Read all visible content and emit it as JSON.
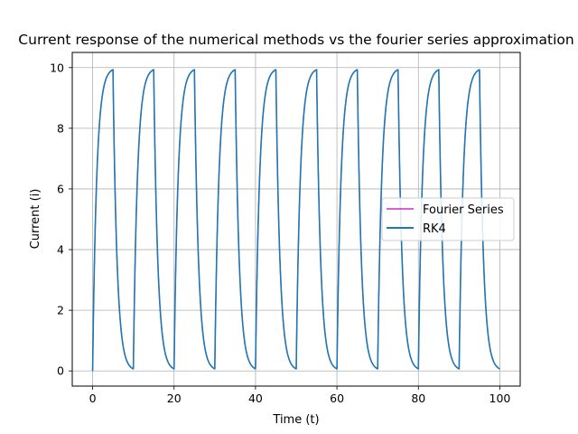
{
  "chart_data": {
    "type": "line",
    "title": "Current response of the numerical methods vs the fourier series approximation",
    "xlabel": "Time (t)",
    "ylabel": "Current (i)",
    "xlim": [
      -5,
      105
    ],
    "ylim": [
      -0.5,
      10.5
    ],
    "xticks": [
      0,
      20,
      40,
      60,
      80,
      100
    ],
    "yticks": [
      0,
      2,
      4,
      6,
      8,
      10
    ],
    "grid": true,
    "legend_position": "center-right",
    "series": [
      {
        "name": "Fourier Series",
        "color": "#bf00bf",
        "description_of_shape": "square-wave RL response overlapped by RK4"
      },
      {
        "name": "RK4",
        "color": "#1f77b4",
        "x": [
          0,
          0.5,
          1,
          1.5,
          2,
          3,
          4,
          5,
          5.5,
          6,
          7,
          8,
          9,
          10,
          10.5,
          11,
          12,
          13,
          14,
          15,
          15.5,
          16,
          17,
          18,
          19,
          20,
          20.5,
          21,
          22,
          23,
          24,
          25,
          25.5,
          26,
          27,
          28,
          29,
          30,
          30.5,
          31,
          32,
          33,
          34,
          35,
          35.5,
          36,
          37,
          38,
          39,
          40,
          40.5,
          41,
          42,
          43,
          44,
          45,
          45.5,
          46,
          47,
          48,
          49,
          50,
          50.5,
          51,
          52,
          53,
          54,
          55,
          55.5,
          56,
          57,
          58,
          59,
          60,
          60.5,
          61,
          62,
          63,
          64,
          65,
          65.5,
          66,
          67,
          68,
          69,
          70,
          70.5,
          71,
          72,
          73,
          74,
          75,
          75.5,
          76,
          77,
          78,
          79,
          80,
          80.5,
          81,
          82,
          83,
          84,
          85,
          85.5,
          86,
          87,
          88,
          89,
          90,
          90.5,
          91,
          92,
          93,
          94,
          95,
          95.5,
          96,
          97,
          98,
          99,
          100
        ],
        "y": [
          0,
          3.9,
          6.3,
          7.8,
          8.65,
          9.5,
          9.8,
          9.93,
          6.0,
          3.7,
          1.4,
          0.5,
          0.2,
          0.07,
          4.0,
          6.3,
          8.6,
          9.5,
          9.8,
          9.93,
          6.0,
          3.7,
          1.4,
          0.5,
          0.2,
          0.07,
          4.0,
          6.3,
          8.6,
          9.5,
          9.8,
          9.93,
          6.0,
          3.7,
          1.4,
          0.5,
          0.2,
          0.07,
          4.0,
          6.3,
          8.6,
          9.5,
          9.8,
          9.93,
          6.0,
          3.7,
          1.4,
          0.5,
          0.2,
          0.07,
          4.0,
          6.3,
          8.6,
          9.5,
          9.8,
          9.93,
          6.0,
          3.7,
          1.4,
          0.5,
          0.2,
          0.07,
          4.0,
          6.3,
          8.6,
          9.5,
          9.8,
          9.93,
          6.0,
          3.7,
          1.4,
          0.5,
          0.2,
          0.07,
          4.0,
          6.3,
          8.6,
          9.5,
          9.8,
          9.93,
          6.0,
          3.7,
          1.4,
          0.5,
          0.2,
          0.07,
          4.0,
          6.3,
          8.6,
          9.5,
          9.8,
          9.93,
          6.0,
          3.7,
          1.4,
          0.5,
          0.2,
          0.07,
          4.0,
          6.3,
          8.6,
          9.5,
          9.8,
          9.93,
          6.0,
          3.7,
          1.4,
          0.5,
          0.2,
          0.07,
          4.0,
          6.3,
          8.6,
          9.5,
          9.8,
          9.93,
          6.0,
          3.7,
          1.4,
          0.5,
          0.2,
          0.07
        ]
      }
    ]
  }
}
